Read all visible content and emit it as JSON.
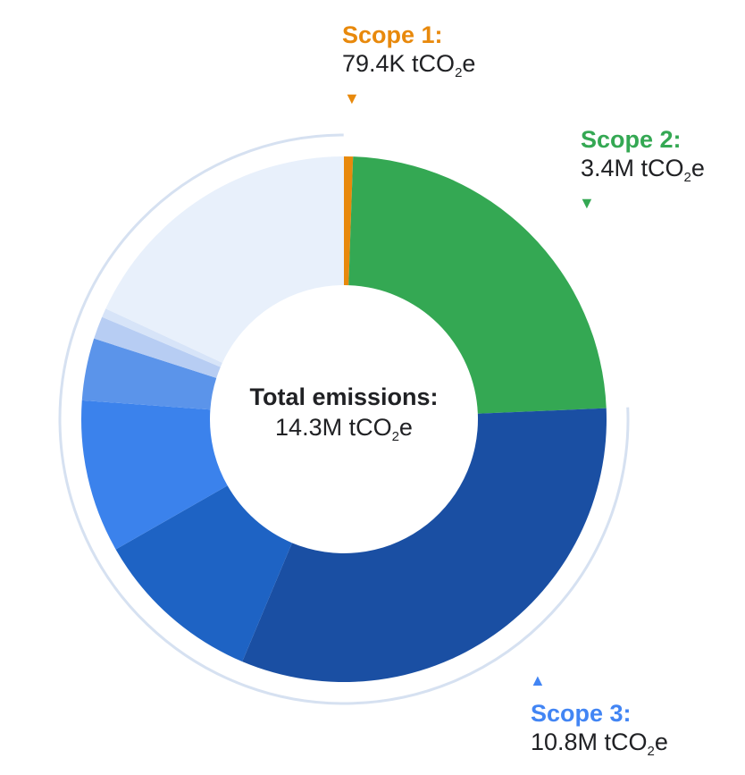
{
  "chart_data": {
    "type": "pie",
    "variant": "donut",
    "unit": "tCO₂e",
    "total": {
      "label": "Total emissions:",
      "value_prefix": "14.3M tCO",
      "value_sub": "2",
      "value_suffix": "e",
      "value": 14300000
    },
    "scopes": [
      {
        "name": "Scope 1",
        "label": "Scope 1:",
        "value_prefix": "79.4K tCO",
        "value_sub": "2",
        "value_suffix": "e",
        "value": 79400,
        "color": "#e8890c",
        "marker": "down"
      },
      {
        "name": "Scope 2",
        "label": "Scope 2:",
        "value_prefix": "3.4M tCO",
        "value_sub": "2",
        "value_suffix": "e",
        "value": 3400000,
        "color": "#34a853",
        "marker": "down"
      },
      {
        "name": "Scope 3",
        "label": "Scope 3:",
        "value_prefix": "10.8M tCO",
        "value_sub": "2",
        "value_suffix": "e",
        "value": 10800000,
        "color": "#4285f4",
        "marker": "up"
      }
    ],
    "scope3_breakdown": [
      {
        "value": 4600000,
        "color": "#1a4fa3"
      },
      {
        "value": 1500000,
        "color": "#1e63c4"
      },
      {
        "value": 1350000,
        "color": "#3b82ec"
      },
      {
        "value": 550000,
        "color": "#5b94ea"
      },
      {
        "value": 200000,
        "color": "#b7cdf3"
      },
      {
        "value": 80000,
        "color": "#d7e4f8"
      },
      {
        "value": 2600000,
        "color": "#e8f0fb"
      }
    ],
    "outer_ring_color": "#d6e1f1"
  }
}
